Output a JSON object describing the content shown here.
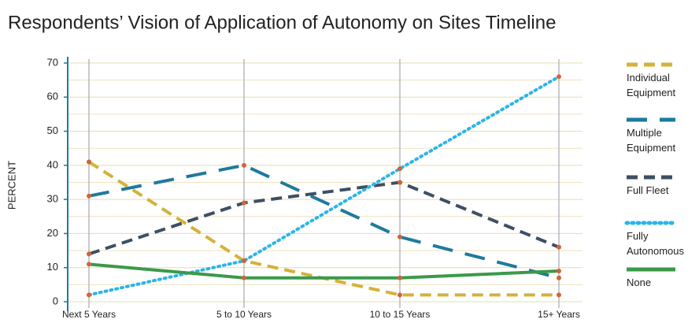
{
  "chart_data": {
    "type": "line",
    "title": "Respondents’ Vision of Application of Autonomy on Sites Timeline",
    "y_label": "PERCENT",
    "categories": [
      "Next 5 Years",
      "5 to 10 Years",
      "10 to 15 Years",
      "15+ Years"
    ],
    "series": [
      {
        "name": "Individual Equipment",
        "color": "#d4b23a",
        "line_style": "dashed",
        "values": [
          41,
          12,
          2,
          2
        ]
      },
      {
        "name": "Multiple Equipment",
        "color": "#1f7a9c",
        "line_style": "long-dashed",
        "values": [
          31,
          40,
          19,
          7
        ]
      },
      {
        "name": "Full Fleet",
        "color": "#3d4f63",
        "line_style": "dashed",
        "values": [
          14,
          29,
          35,
          16
        ]
      },
      {
        "name": "Fully Autonomous",
        "color": "#2bb5e8",
        "line_style": "dotted",
        "values": [
          2,
          12,
          39,
          66
        ]
      },
      {
        "name": "None",
        "color": "#3a9a48",
        "line_style": "solid",
        "values": [
          11,
          7,
          7,
          9
        ]
      }
    ],
    "ylim": [
      0,
      70
    ],
    "yticks": [
      0,
      10,
      20,
      30,
      40,
      50,
      60,
      70
    ],
    "minor_yticks": [
      5,
      15,
      25,
      35,
      45,
      55,
      65
    ],
    "grid": true,
    "marker_color": "#d0643a",
    "legend": "right"
  }
}
